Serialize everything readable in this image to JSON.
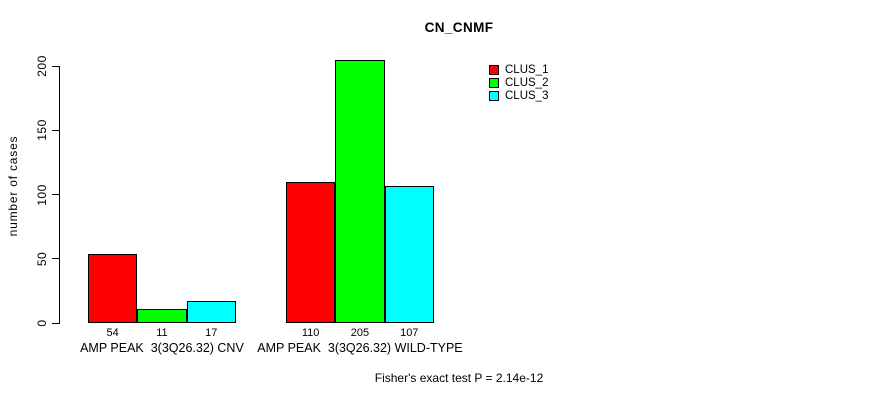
{
  "chart_data": {
    "type": "bar",
    "title": "CN_CNMF",
    "ylabel": "number of cases",
    "xlabel": "",
    "ylim": [
      0,
      200
    ],
    "yticks": [
      0,
      50,
      100,
      150,
      200
    ],
    "grid": false,
    "legend_position": "top-right",
    "categories": [
      "AMP PEAK  3(3Q26.32) CNV",
      "AMP PEAK  3(3Q26.32) WILD-TYPE"
    ],
    "series": [
      {
        "name": "CLUS_1",
        "color": "#ff0000",
        "values": [
          54,
          110
        ]
      },
      {
        "name": "CLUS_2",
        "color": "#00ff00",
        "values": [
          11,
          205
        ]
      },
      {
        "name": "CLUS_3",
        "color": "#00ffff",
        "values": [
          17,
          107
        ]
      }
    ],
    "bar_value_labels": [
      [
        54,
        11,
        17
      ],
      [
        110,
        205,
        107
      ]
    ],
    "footer": "Fisher's exact test P = 2.14e-12"
  }
}
